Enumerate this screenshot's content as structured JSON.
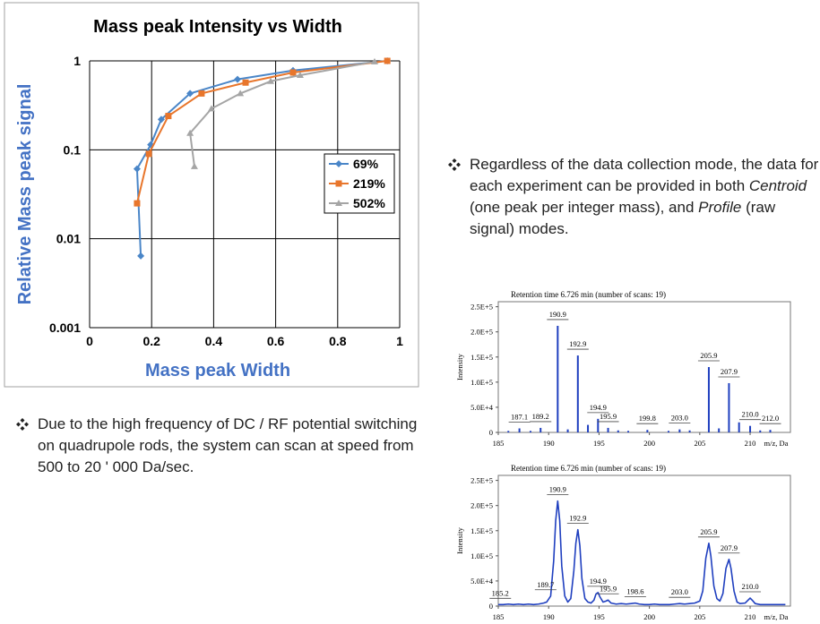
{
  "chart_data": [
    {
      "type": "line",
      "title": "Mass peak Intensity vs Width",
      "x_label": "Mass peak Width",
      "y_label": "Relative Mass peak signal",
      "xlim": [
        0,
        1
      ],
      "xticks": [
        0,
        0.2,
        0.4,
        0.6,
        0.8,
        1
      ],
      "ylim": [
        0.001,
        1
      ],
      "yticks": [
        0.001,
        0.01,
        0.1,
        1
      ],
      "log_y": true,
      "grid": true,
      "legend": "right",
      "series": [
        {
          "name": "69%",
          "color": "#4a86c8",
          "marker": "diamond",
          "x": [
            0.165,
            0.153,
            0.197,
            0.231,
            0.324,
            0.477,
            0.656,
            0.96
          ],
          "values": [
            0.0064,
            0.061,
            0.114,
            0.22,
            0.43,
            0.62,
            0.78,
            1.0
          ]
        },
        {
          "name": "219%",
          "color": "#e8762c",
          "marker": "square",
          "x": [
            0.153,
            0.191,
            0.254,
            0.361,
            0.503,
            0.656,
            0.96
          ],
          "values": [
            0.025,
            0.09,
            0.24,
            0.43,
            0.57,
            0.74,
            1.0
          ]
        },
        {
          "name": "502%",
          "color": "#a5a5a5",
          "marker": "triangle",
          "x": [
            0.338,
            0.324,
            0.393,
            0.486,
            0.584,
            0.679,
            0.919
          ],
          "values": [
            0.065,
            0.154,
            0.29,
            0.43,
            0.59,
            0.69,
            0.98
          ]
        }
      ]
    },
    {
      "type": "bar",
      "title": "Retention time 6.726 min (number of scans: 19)",
      "y_label": "Intensity",
      "x_label": "m/z, Da",
      "color": "#1f3fbf",
      "xlim": [
        185,
        214
      ],
      "xticks": [
        185,
        190,
        195,
        200,
        205,
        210
      ],
      "ylim": [
        0,
        260000
      ],
      "yticks": [
        0,
        {
          "value": 50000,
          "label": "5.0E+4"
        },
        {
          "value": 100000,
          "label": "1.0E+5"
        },
        {
          "value": 150000,
          "label": "1.5E+5"
        },
        {
          "value": 200000,
          "label": "2.0E+5"
        },
        {
          "value": 250000,
          "label": "2.5E+5"
        }
      ],
      "x": [
        186.0,
        187.1,
        188.2,
        189.2,
        190.9,
        191.9,
        192.9,
        193.9,
        194.9,
        195.9,
        196.9,
        197.9,
        199.8,
        201.9,
        203.0,
        204.0,
        205.9,
        206.9,
        207.9,
        208.9,
        210.0,
        211.0,
        212.0
      ],
      "values": [
        3000,
        8000,
        3000,
        9000,
        212000,
        6000,
        153000,
        15000,
        27000,
        9000,
        4000,
        3000,
        5000,
        3000,
        6000,
        4000,
        130000,
        8000,
        98000,
        20000,
        13000,
        4000,
        5000
      ],
      "peak_labels": [
        187.1,
        189.2,
        190.9,
        192.9,
        194.9,
        195.9,
        199.8,
        {
          "value": 203,
          "label": "203.0"
        },
        205.9,
        207.9,
        {
          "value": 210,
          "label": "210.0"
        },
        {
          "value": 212,
          "label": "212.0"
        }
      ]
    },
    {
      "type": "line",
      "title": "Retention time 6.726 min (number of scans: 19)",
      "y_label": "Intensity",
      "x_label": "m/z, Da",
      "color": "#1f3fbf",
      "xlim": [
        185,
        214
      ],
      "xticks": [
        185,
        190,
        195,
        200,
        205,
        210
      ],
      "ylim": [
        0,
        260000
      ],
      "yticks": [
        0,
        {
          "value": 50000,
          "label": "5.0E+4"
        },
        {
          "value": 100000,
          "label": "1.0E+5"
        },
        {
          "value": 150000,
          "label": "1.5E+5"
        },
        {
          "value": 200000,
          "label": "2.0E+5"
        },
        {
          "value": 250000,
          "label": "2.5E+5"
        }
      ],
      "x": [
        185,
        185.5,
        186,
        186.5,
        187,
        187.5,
        188,
        188.5,
        189,
        189.5,
        189.8,
        190.2,
        190.5,
        190.7,
        190.9,
        191.1,
        191.3,
        191.6,
        191.9,
        192.2,
        192.5,
        192.7,
        192.9,
        193.1,
        193.3,
        193.6,
        193.9,
        194.2,
        194.5,
        194.7,
        194.9,
        195.1,
        195.4,
        195.7,
        195.9,
        196.2,
        196.7,
        197.2,
        197.7,
        198.2,
        198.6,
        199,
        199.5,
        200,
        200.5,
        201,
        201.5,
        202,
        202.5,
        203,
        203.5,
        204,
        204.5,
        205,
        205.3,
        205.6,
        205.9,
        206.1,
        206.4,
        206.7,
        207,
        207.3,
        207.6,
        207.9,
        208.1,
        208.4,
        208.7,
        209,
        209.5,
        209.8,
        210,
        210.2,
        210.5,
        211,
        211.5,
        212,
        212.5,
        213,
        213.5
      ],
      "values": [
        3000,
        3000,
        4000,
        3000,
        4000,
        3000,
        4000,
        3000,
        4000,
        6000,
        8000,
        20000,
        90000,
        170000,
        209000,
        170000,
        80000,
        20000,
        8000,
        15000,
        70000,
        125000,
        152000,
        120000,
        55000,
        15000,
        8000,
        6000,
        12000,
        24000,
        27000,
        18000,
        8000,
        10000,
        12000,
        6000,
        4000,
        5000,
        4000,
        5000,
        6000,
        4000,
        3000,
        3000,
        4000,
        3000,
        3000,
        3000,
        4000,
        5000,
        4000,
        5000,
        6000,
        10000,
        30000,
        95000,
        125000,
        100000,
        40000,
        15000,
        10000,
        25000,
        75000,
        93000,
        75000,
        30000,
        8000,
        5000,
        6000,
        12000,
        16000,
        12000,
        5000,
        3000,
        3000,
        3000,
        3000,
        3000,
        3000
      ],
      "peak_labels": [
        185.2,
        189.7,
        190.9,
        192.9,
        194.9,
        195.9,
        198.6,
        {
          "value": 203,
          "label": "203.0"
        },
        205.9,
        207.9,
        {
          "value": 210,
          "label": "210.0"
        }
      ]
    }
  ],
  "notes": [
    [
      "Due to the high frequency of DC / RF potential switching on quadrupole rods, the system can scan at speed from 500 to 20 ' 000 Da/sec."
    ],
    [
      "Regardless of the data collection mode, the data for each experiment can be provided in both ",
      "Centroid",
      " (one peak per integer mass), and ",
      "Profile",
      " (raw signal) modes."
    ]
  ]
}
